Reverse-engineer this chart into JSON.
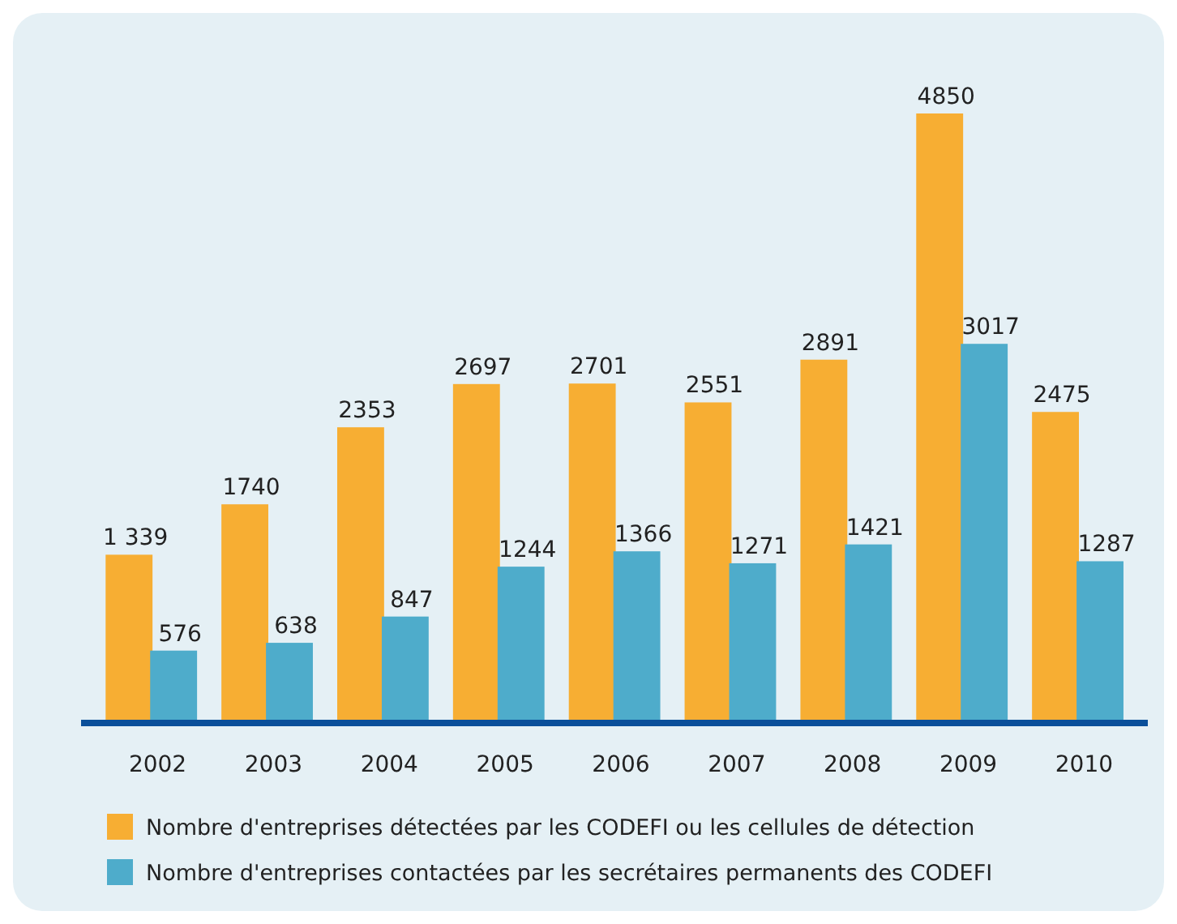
{
  "chart_data": {
    "type": "bar",
    "categories": [
      "2002",
      "2003",
      "2004",
      "2005",
      "2006",
      "2007",
      "2008",
      "2009",
      "2010"
    ],
    "series": [
      {
        "name": "Nombre d'entreprises détectées par les CODEFI ou les cellules de détection",
        "color": "#f7ae33",
        "values": [
          1339,
          1740,
          2353,
          2697,
          2701,
          2551,
          2891,
          4850,
          2475
        ],
        "value_labels": [
          "1 339",
          "1740",
          "2353",
          "2697",
          "2701",
          "2551",
          "2891",
          "4850",
          "2475"
        ]
      },
      {
        "name": "Nombre d'entreprises contactées par les secrétaires permanents des CODEFI",
        "color": "#4eaccb",
        "values": [
          576,
          638,
          847,
          1244,
          1366,
          1271,
          1421,
          3017,
          1287
        ],
        "value_labels": [
          "576",
          "638",
          "847",
          "1244",
          "1366",
          "1271",
          "1421",
          "3017",
          "1287"
        ]
      }
    ],
    "legend": "bottom"
  }
}
